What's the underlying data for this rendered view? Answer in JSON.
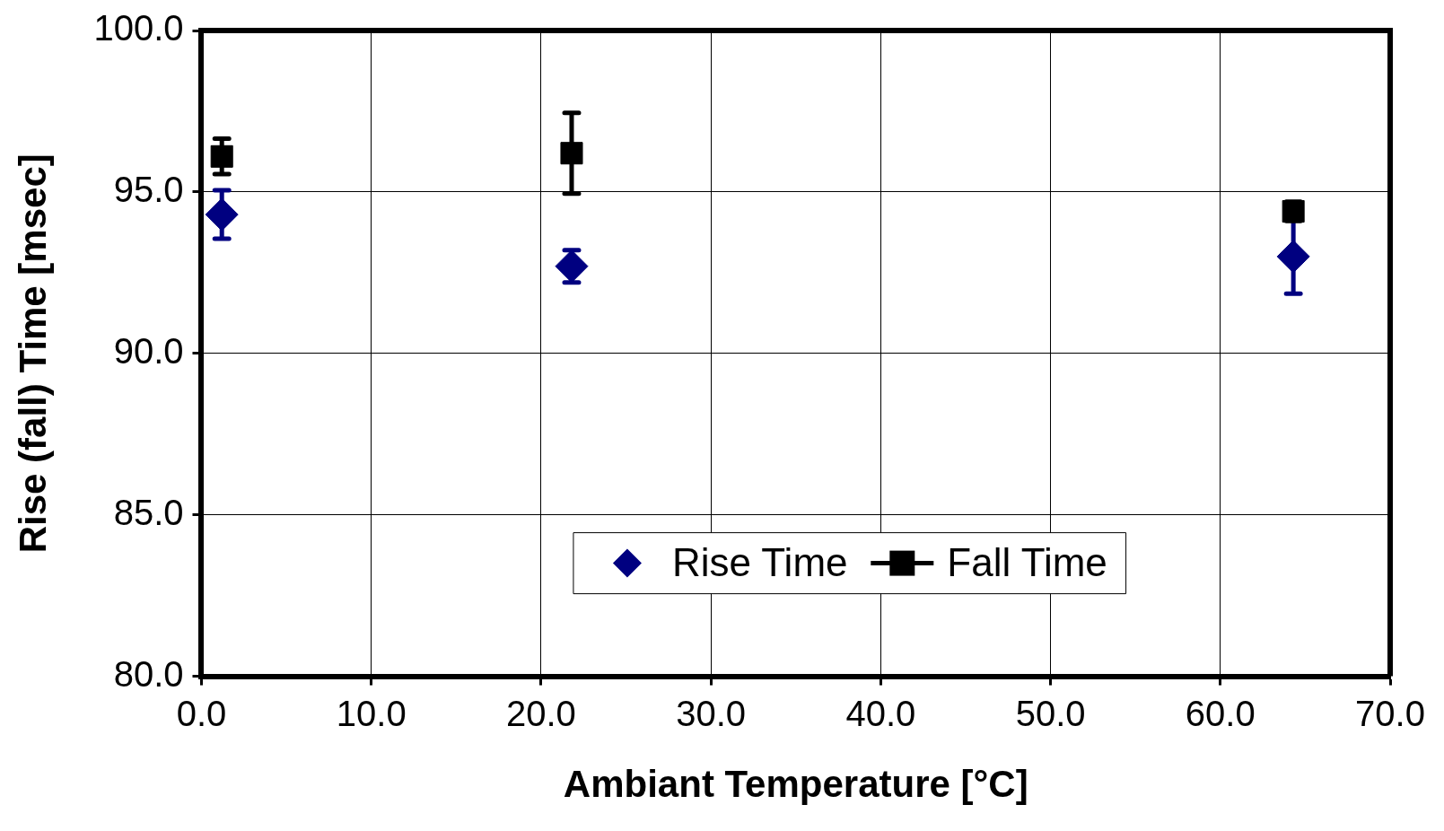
{
  "chart_data": {
    "type": "scatter",
    "xlabel": "Ambiant Temperature [°C]",
    "ylabel": "Rise (fall) Time [msec]",
    "xlim": [
      0,
      70
    ],
    "xticks": [
      {
        "value": 0,
        "label": "0.0"
      },
      {
        "value": 10,
        "label": "10.0"
      },
      {
        "value": 20,
        "label": "20.0"
      },
      {
        "value": 30,
        "label": "30.0"
      },
      {
        "value": 40,
        "label": "40.0"
      },
      {
        "value": 50,
        "label": "50.0"
      },
      {
        "value": 60,
        "label": "60.0"
      },
      {
        "value": 70,
        "label": "70.0"
      }
    ],
    "ylim": [
      80,
      100
    ],
    "yticks": [
      {
        "value": 80,
        "label": "80.0"
      },
      {
        "value": 85,
        "label": "85.0"
      },
      {
        "value": 90,
        "label": "90.0"
      },
      {
        "value": 95,
        "label": "95.0"
      },
      {
        "value": 100,
        "label": "100.0"
      }
    ],
    "grid": true,
    "legend": "bottom",
    "series": [
      {
        "name": "Rise Time",
        "color": "#000080",
        "marker": "diamond",
        "x": [
          1.2,
          21.8,
          64.3
        ],
        "values": [
          94.3,
          92.7,
          93.0
        ],
        "errors": [
          0.75,
          0.5,
          1.15
        ]
      },
      {
        "name": "Fall Time",
        "color": "#000000",
        "marker": "square",
        "x": [
          1.2,
          21.8,
          64.3
        ],
        "values": [
          96.1,
          96.2,
          94.4
        ],
        "errors": [
          0.55,
          1.25,
          0.3
        ]
      }
    ]
  }
}
